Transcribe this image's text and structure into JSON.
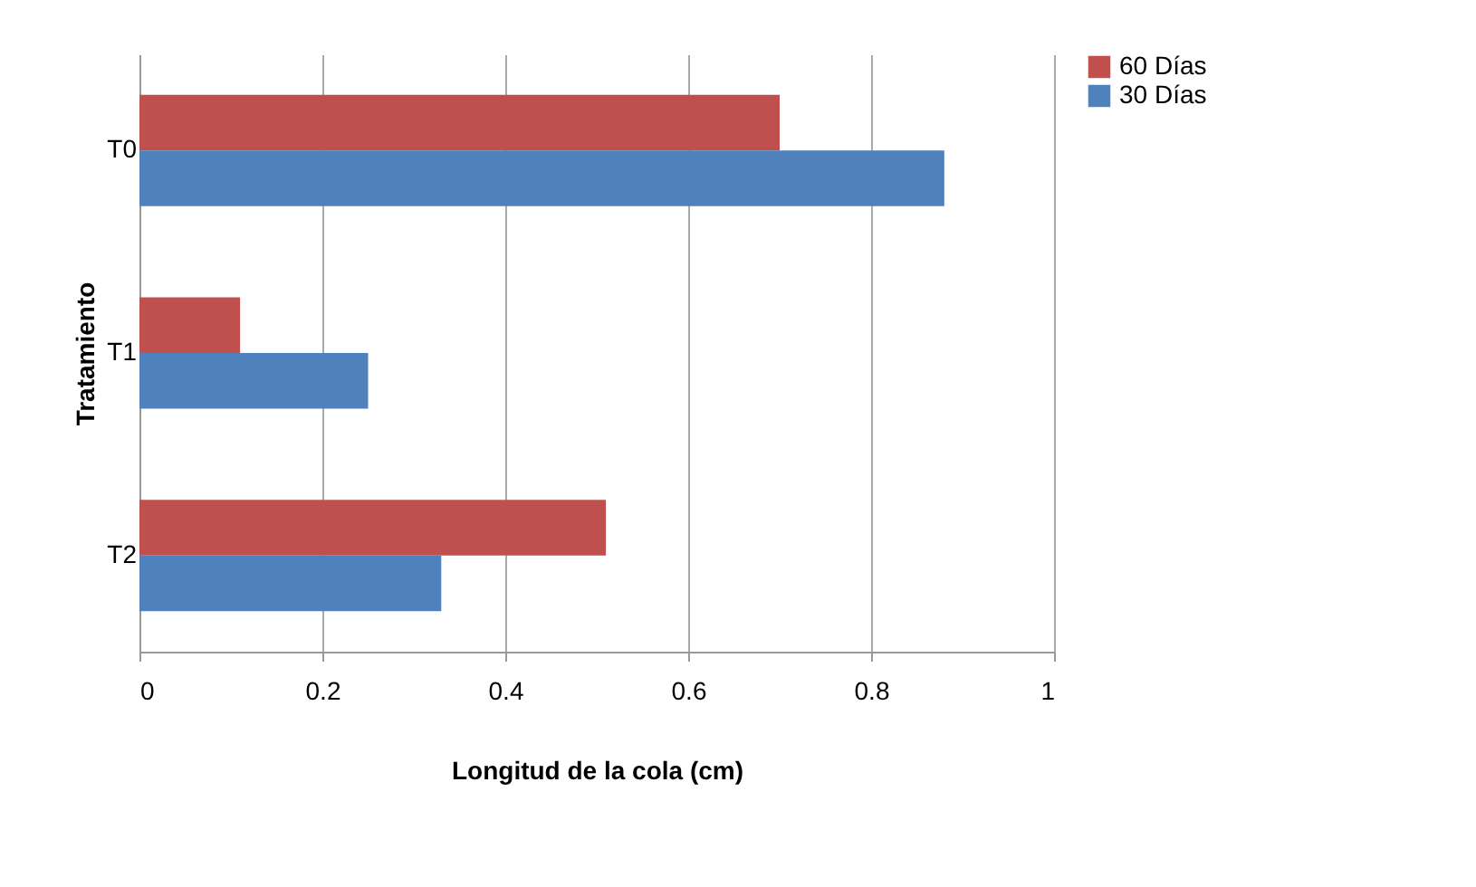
{
  "chart_data": {
    "type": "bar",
    "orientation": "horizontal",
    "xlabel": "Longitud de la cola (cm)",
    "ylabel": "Tratamiento",
    "categories": [
      "T0",
      "T1",
      "T2"
    ],
    "series": [
      {
        "name": "60 Días",
        "color": "#c0504d",
        "values": [
          0.7,
          0.11,
          0.51
        ]
      },
      {
        "name": "30 Días",
        "color": "#4f81bd",
        "values": [
          0.88,
          0.25,
          0.33
        ]
      }
    ],
    "xlim": [
      0,
      1
    ],
    "xticks": [
      0,
      0.2,
      0.4,
      0.6,
      0.8,
      1
    ],
    "grid": "x",
    "legend": "right"
  }
}
